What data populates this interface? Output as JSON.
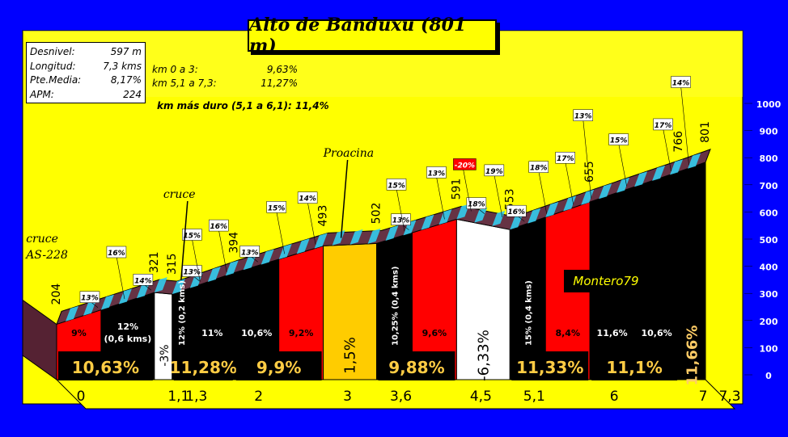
{
  "title": "Alto de Banduxu (801 m)",
  "stats": [
    {
      "label": "Desnivel:",
      "value": "597 m"
    },
    {
      "label": "Longitud:",
      "value": "7,3 kms"
    },
    {
      "label": "Pte.Media:",
      "value": "8,17%"
    },
    {
      "label": "APM:",
      "value": "224"
    }
  ],
  "splits": [
    {
      "label": "km 0 a 3:",
      "value": "9,63%"
    },
    {
      "label": "km 5,1 a 7,3:",
      "value": "11,27%"
    }
  ],
  "hardest": "km más duro (5,1 a 6,1): 11,4%",
  "author": "Montero79",
  "colors": {
    "background": "#0000ff",
    "panel": "#ffff00",
    "climb": "#ff0000",
    "hard": "#000000",
    "descent": "#ffffff",
    "flat": "#ffcc00",
    "profile_top": "#663344",
    "stripe": "#33ccee"
  },
  "chart_data": {
    "type": "area",
    "title": "Alto de Banduxu (801 m)",
    "xlabel": "",
    "ylabel": "",
    "xlim": [
      0,
      7.3
    ],
    "ylim": [
      0,
      1000
    ],
    "y_ticks": [
      "0",
      "100",
      "200",
      "300",
      "400",
      "500",
      "600",
      "700",
      "800",
      "900",
      "1000"
    ],
    "profile": {
      "km": [
        0,
        1.1,
        1.3,
        2,
        3,
        3.6,
        4.5,
        5.1,
        6,
        7,
        7.3
      ],
      "alt": [
        204,
        321,
        315,
        394,
        493,
        502,
        591,
        553,
        655,
        766,
        801
      ]
    },
    "x_labels": [
      "0",
      "1,1",
      "1,3",
      "2",
      "3",
      "3,6",
      "4,5",
      "5,1",
      "6",
      "7",
      "7,3"
    ],
    "altitude_labels": [
      {
        "km": 0,
        "text": "204"
      },
      {
        "km": 1.1,
        "text": "321"
      },
      {
        "km": 1.3,
        "text": "315"
      },
      {
        "km": 2,
        "text": "394"
      },
      {
        "km": 3,
        "text": "493"
      },
      {
        "km": 3.6,
        "text": "502"
      },
      {
        "km": 4.5,
        "text": "591"
      },
      {
        "km": 5.1,
        "text": "553"
      },
      {
        "km": 6,
        "text": "655"
      },
      {
        "km": 7,
        "text": "766"
      },
      {
        "km": 7.3,
        "text": "801"
      }
    ],
    "sections": [
      {
        "from": 0,
        "to": 1.1,
        "grade": "10,63%",
        "grade_vertical": false
      },
      {
        "from": 1.1,
        "to": 1.3,
        "grade": "-3%",
        "grade_vertical": true
      },
      {
        "from": 1.3,
        "to": 2,
        "grade": "11,28%",
        "grade_vertical": false
      },
      {
        "from": 2,
        "to": 3,
        "grade": "9,9%",
        "grade_vertical": false
      },
      {
        "from": 3,
        "to": 3.6,
        "grade": "1,5%",
        "grade_vertical": true
      },
      {
        "from": 3.6,
        "to": 4.5,
        "grade": "9,88%",
        "grade_vertical": false
      },
      {
        "from": 4.5,
        "to": 5.1,
        "grade": "-6,33%",
        "grade_vertical": true
      },
      {
        "from": 5.1,
        "to": 6,
        "grade": "11,33%",
        "grade_vertical": false
      },
      {
        "from": 6,
        "to": 7,
        "grade": "11,1%",
        "grade_vertical": false
      },
      {
        "from": 7,
        "to": 7.3,
        "grade": "11,66%",
        "grade_vertical": true
      }
    ],
    "subsections": [
      {
        "from": 0,
        "to": 0.5,
        "fill": "red",
        "label": "9%",
        "vertical": false
      },
      {
        "from": 0.5,
        "to": 1.1,
        "fill": "black",
        "label": "12%\n(0,6 kms)",
        "vertical": false
      },
      {
        "from": 1.1,
        "to": 1.3,
        "fill": "white",
        "label": "",
        "vertical": false
      },
      {
        "from": 1.3,
        "to": 1.5,
        "fill": "black",
        "label": "12% (0,2 kms)",
        "vertical": true
      },
      {
        "from": 1.5,
        "to": 2,
        "fill": "black",
        "label": "11%",
        "vertical": false
      },
      {
        "from": 2,
        "to": 2.5,
        "fill": "black",
        "label": "10,6%",
        "vertical": false
      },
      {
        "from": 2.5,
        "to": 3,
        "fill": "red",
        "label": "9,2%",
        "vertical": false
      },
      {
        "from": 3,
        "to": 3.6,
        "fill": "yellow",
        "label": "",
        "vertical": false
      },
      {
        "from": 3.6,
        "to": 4,
        "fill": "black",
        "label": "10,25% (0,4 kms)",
        "vertical": true
      },
      {
        "from": 4,
        "to": 4.5,
        "fill": "red",
        "label": "9,6%",
        "vertical": false
      },
      {
        "from": 4.5,
        "to": 5.1,
        "fill": "white",
        "label": "",
        "vertical": false
      },
      {
        "from": 5.1,
        "to": 5.5,
        "fill": "black",
        "label": "15% (0,4 kms)",
        "vertical": true
      },
      {
        "from": 5.5,
        "to": 6,
        "fill": "red",
        "label": "8,4%",
        "vertical": false
      },
      {
        "from": 6,
        "to": 6.5,
        "fill": "black",
        "label": "11,6%",
        "vertical": false
      },
      {
        "from": 6.5,
        "to": 7,
        "fill": "black",
        "label": "10,6%",
        "vertical": false
      },
      {
        "from": 7,
        "to": 7.3,
        "fill": "black",
        "label": "",
        "vertical": false
      }
    ],
    "grade_callouts": [
      {
        "km": 0.3,
        "text": "13%",
        "row": 0
      },
      {
        "km": 0.6,
        "text": "16%",
        "row": 1
      },
      {
        "km": 0.9,
        "text": "14%",
        "row": 0
      },
      {
        "km": 1.45,
        "text": "13%",
        "row": 0
      },
      {
        "km": 1.45,
        "text": "15%",
        "row": 1
      },
      {
        "km": 1.75,
        "text": "16%",
        "row": 1
      },
      {
        "km": 2.1,
        "text": "13%",
        "row": 0
      },
      {
        "km": 2.4,
        "text": "15%",
        "row": 1
      },
      {
        "km": 2.75,
        "text": "14%",
        "row": 1
      },
      {
        "km": 3.8,
        "text": "13%",
        "row": 0
      },
      {
        "km": 3.75,
        "text": "15%",
        "row": 1
      },
      {
        "km": 4.2,
        "text": "13%",
        "row": 1
      },
      {
        "km": 4.65,
        "text": "18%",
        "row": 0
      },
      {
        "km": 4.5,
        "text": "-20%",
        "row": 1
      },
      {
        "km": 4.85,
        "text": "19%",
        "row": 1
      },
      {
        "km": 5.1,
        "text": "16%",
        "row": 0
      },
      {
        "km": 5.35,
        "text": "18%",
        "row": 1
      },
      {
        "km": 5.65,
        "text": "17%",
        "row": 1
      },
      {
        "km": 5.85,
        "text": "13%",
        "row": 2
      },
      {
        "km": 6.25,
        "text": "15%",
        "row": 1
      },
      {
        "km": 6.75,
        "text": "17%",
        "row": 1
      },
      {
        "km": 6.95,
        "text": "14%",
        "row": 2
      }
    ],
    "annotations": [
      {
        "km": 0.02,
        "text": "cruce\nAS-228"
      },
      {
        "km": 1.2,
        "text": "cruce"
      },
      {
        "km": 3.0,
        "text": "Proacina"
      }
    ]
  }
}
